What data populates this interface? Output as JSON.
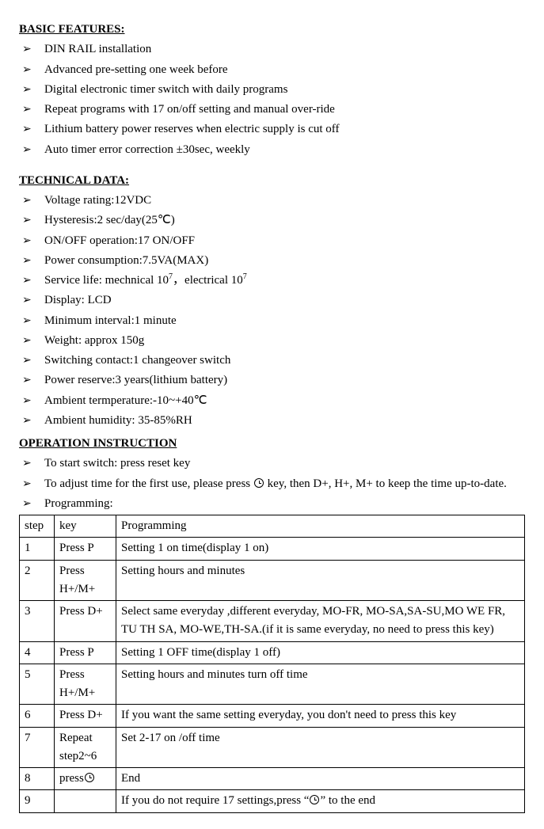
{
  "sections": {
    "basic": {
      "heading": "BASIC FEATURES:",
      "items": [
        "DIN RAIL installation",
        "Advanced pre-setting one week before",
        "Digital electronic timer switch with daily programs",
        "Repeat programs with 17 on/off setting and manual over-ride",
        "Lithium battery power reserves when electric supply is cut off",
        "Auto timer error correction ±30sec, weekly"
      ]
    },
    "tech": {
      "heading": "TECHNICAL DATA:",
      "items": [
        "Voltage rating:12VDC",
        "Hysteresis:2 sec/day(25℃)",
        "ON/OFF operation:17 ON/OFF",
        "Power consumption:7.5VA(MAX)",
        {
          "pre": "Service life: mechnical 10",
          "sup1": "7",
          "mid": "，electrical 10",
          "sup2": "7"
        },
        "Display: LCD",
        "Minimum interval:1 minute",
        "Weight: approx 150g",
        "Switching contact:1 changeover switch",
        "Power reserve:3 years(lithium battery)",
        "Ambient termperature:-10~+40℃",
        "Ambient humidity: 35-85%RH"
      ]
    },
    "op": {
      "heading": "OPERATION INSTRUCTION",
      "items": [
        "To start switch: press reset key",
        {
          "pre": "To adjust time for the first use, please press ",
          "clock": true,
          "post": " key, then D+, H+, M+ to keep the time up-to-date.",
          "justify": true
        },
        "Programming:"
      ]
    }
  },
  "table": {
    "headers": [
      "step",
      "key",
      "Programming"
    ],
    "rows": [
      {
        "step": "1",
        "key": "Press P",
        "prog": "Setting 1 on time(display 1 on)"
      },
      {
        "step": "2",
        "key": "Press H+/M+",
        "prog": "Setting hours and minutes"
      },
      {
        "step": "3",
        "key": "Press D+",
        "prog": "Select same everyday ,different everyday, MO-FR, MO-SA,SA-SU,MO WE FR, TU TH SA, MO-WE,TH-SA.(if it is same everyday, no need to press this key)"
      },
      {
        "step": "4",
        "key": "Press P",
        "prog": "Setting 1 OFF time(display 1 off)"
      },
      {
        "step": "5",
        "key": "Press H+/M+",
        "prog": "Setting hours and minutes turn off time"
      },
      {
        "step": "6",
        "key": "Press D+",
        "prog": "If you want the same setting everyday, you don't need to press this key"
      },
      {
        "step": "7",
        "key": "Repeat step2~6",
        "prog": "Set 2-17 on /off time"
      },
      {
        "step": "8",
        "key_pre": "press",
        "key_clock": true,
        "prog": "End"
      },
      {
        "step": "9",
        "key": "",
        "prog_pre": "If you do not require 17 settings,press “",
        "prog_clock": true,
        "prog_post": "” to the end"
      }
    ]
  },
  "bullet": "➢"
}
